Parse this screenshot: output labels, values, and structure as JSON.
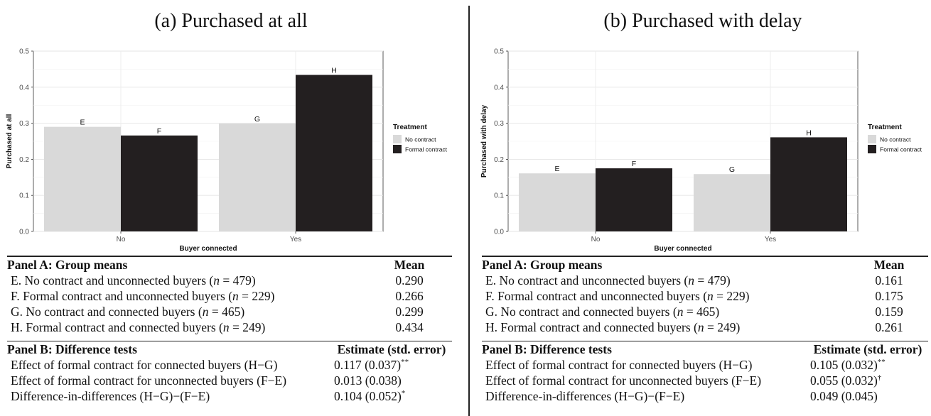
{
  "panels": [
    {
      "title": "(a) Purchased at all",
      "chart_data": {
        "type": "bar",
        "categories": [
          "No",
          "Yes"
        ],
        "series": [
          {
            "name": "No contract",
            "values": [
              0.29,
              0.299
            ],
            "labels": [
              "E",
              "G"
            ],
            "color": "#d9d9d9"
          },
          {
            "name": "Formal contract",
            "values": [
              0.266,
              0.434
            ],
            "labels": [
              "F",
              "H"
            ],
            "color": "#231f20"
          }
        ],
        "xlabel": "Buyer connected",
        "ylabel": "Purchased at all",
        "ylim": [
          0,
          0.5
        ],
        "yticks": [
          "0.0",
          "0.1",
          "0.2",
          "0.3",
          "0.4",
          "0.5"
        ],
        "legend_title": "Treatment",
        "legend_position": "right",
        "grid": true
      },
      "panel_a": {
        "title": "Panel A: Group means",
        "col": "Mean",
        "rows": [
          {
            "label": "E. No contract and unconnected buyers (",
            "n": "479",
            "value": "0.290"
          },
          {
            "label": "F. Formal contract and unconnected buyers (",
            "n": "229",
            "value": "0.266"
          },
          {
            "label": "G. No contract and connected buyers (",
            "n": "465",
            "value": "0.299"
          },
          {
            "label": "H. Formal contract and connected buyers (",
            "n": "249",
            "value": "0.434"
          }
        ]
      },
      "panel_b": {
        "title": "Panel B: Difference tests",
        "col": "Estimate (std. error)",
        "rows": [
          {
            "label": "Effect of formal contract for connected buyers (H−G)",
            "value": "0.117 (0.037)",
            "sig": "**"
          },
          {
            "label": "Effect of formal contract for unconnected buyers (F−E)",
            "value": "0.013 (0.038)",
            "sig": ""
          },
          {
            "label": "Difference-in-differences (H−G)−(F−E)",
            "value": "0.104 (0.052)",
            "sig": "*"
          }
        ]
      }
    },
    {
      "title": "(b) Purchased with delay",
      "chart_data": {
        "type": "bar",
        "categories": [
          "No",
          "Yes"
        ],
        "series": [
          {
            "name": "No contract",
            "values": [
              0.161,
              0.159
            ],
            "labels": [
              "E",
              "G"
            ],
            "color": "#d9d9d9"
          },
          {
            "name": "Formal contract",
            "values": [
              0.175,
              0.261
            ],
            "labels": [
              "F",
              "H"
            ],
            "color": "#231f20"
          }
        ],
        "xlabel": "Buyer connected",
        "ylabel": "Purchased with delay",
        "ylim": [
          0,
          0.5
        ],
        "yticks": [
          "0.0",
          "0.1",
          "0.2",
          "0.3",
          "0.4",
          "0.5"
        ],
        "legend_title": "Treatment",
        "legend_position": "right",
        "grid": true
      },
      "panel_a": {
        "title": "Panel A: Group means",
        "col": "Mean",
        "rows": [
          {
            "label": "E. No contract and unconnected buyers (",
            "n": "479",
            "value": "0.161"
          },
          {
            "label": "F. Formal contract and unconnected buyers (",
            "n": "229",
            "value": "0.175"
          },
          {
            "label": "G. No contract and connected buyers (",
            "n": "465",
            "value": "0.159"
          },
          {
            "label": "H. Formal contract and connected buyers (",
            "n": "249",
            "value": "0.261"
          }
        ]
      },
      "panel_b": {
        "title": "Panel B: Difference tests",
        "col": "Estimate (std. error)",
        "rows": [
          {
            "label": "Effect of formal contract for connected buyers (H−G)",
            "value": "0.105 (0.032)",
            "sig": "**"
          },
          {
            "label": "Effect of formal contract for unconnected buyers (F−E)",
            "value": "0.055 (0.032)",
            "sig": "†"
          },
          {
            "label": "Difference-in-differences (H−G)−(F−E)",
            "value": "0.049 (0.045)",
            "sig": ""
          }
        ]
      }
    }
  ]
}
